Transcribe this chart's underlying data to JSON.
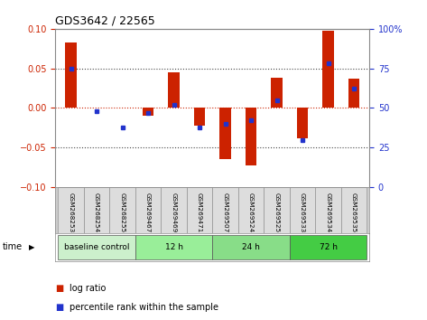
{
  "title": "GDS3642 / 22565",
  "samples": [
    "GSM268253",
    "GSM268254",
    "GSM268255",
    "GSM269467",
    "GSM269469",
    "GSM269471",
    "GSM269507",
    "GSM269524",
    "GSM269525",
    "GSM269533",
    "GSM269534",
    "GSM269535"
  ],
  "log_ratio": [
    0.083,
    0.001,
    0.0,
    -0.01,
    0.045,
    -0.022,
    -0.065,
    -0.072,
    0.038,
    -0.038,
    0.097,
    0.037
  ],
  "percentile": [
    75,
    48,
    38,
    47,
    52,
    38,
    40,
    42,
    55,
    30,
    78,
    62
  ],
  "ylim": [
    -0.1,
    0.1
  ],
  "yticks_left": [
    -0.1,
    -0.05,
    0.0,
    0.05,
    0.1
  ],
  "yticks_right": [
    0,
    25,
    50,
    75,
    100
  ],
  "bar_color": "#cc2200",
  "marker_color": "#2233cc",
  "zero_line_color": "#cc2200",
  "dotted_line_color": "#444444",
  "groups": [
    {
      "label": "baseline control",
      "start": 0,
      "end": 3,
      "color": "#ccf0cc"
    },
    {
      "label": "12 h",
      "start": 3,
      "end": 6,
      "color": "#99ee99"
    },
    {
      "label": "24 h",
      "start": 6,
      "end": 9,
      "color": "#88dd88"
    },
    {
      "label": "72 h",
      "start": 9,
      "end": 12,
      "color": "#44cc44"
    }
  ],
  "bar_width": 0.45,
  "legend_log_ratio_label": "log ratio",
  "legend_percentile_label": "percentile rank within the sample",
  "tick_label_color_left": "#cc2200",
  "tick_label_color_right": "#2233cc",
  "background_color": "#ffffff",
  "label_bg_color": "#cccccc",
  "label_cell_color": "#dddddd"
}
